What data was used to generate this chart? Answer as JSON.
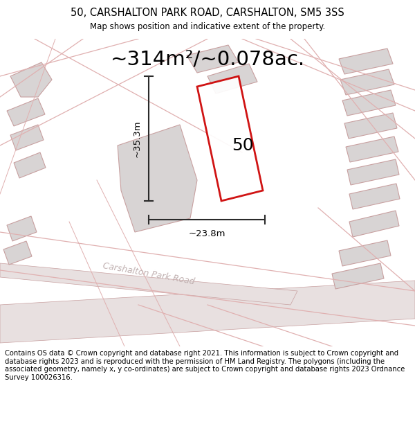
{
  "title": "50, CARSHALTON PARK ROAD, CARSHALTON, SM5 3SS",
  "subtitle": "Map shows position and indicative extent of the property.",
  "area_text": "~314m²/~0.078ac.",
  "number_label": "50",
  "dim_width": "~23.8m",
  "dim_height": "~35.3m",
  "road_label": "Carshalton Park Road",
  "footer_text": "Contains OS data © Crown copyright and database right 2021. This information is subject to Crown copyright and database rights 2023 and is reproduced with the permission of HM Land Registry. The polygons (including the associated geometry, namely x, y co-ordinates) are subject to Crown copyright and database rights 2023 Ordnance Survey 100026316.",
  "bg_color": "#f0ebeb",
  "bld_fill": "#d8d4d4",
  "bld_edge": "#c8a0a0",
  "road_line_color": "#e0b0b0",
  "road_area_fill": "#e8e0e0",
  "dim_line_color": "#2a2a2a",
  "property_color": "#cc0000",
  "title_fontsize": 10.5,
  "subtitle_fontsize": 8.5,
  "area_fontsize": 21,
  "number_fontsize": 18,
  "dim_fontsize": 9.5,
  "road_label_fontsize": 9,
  "footer_fontsize": 7.2
}
